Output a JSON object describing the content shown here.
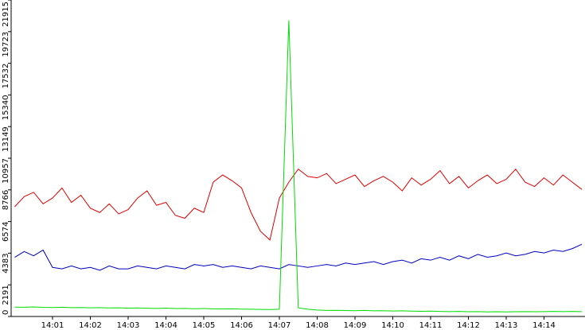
{
  "chart_data": {
    "type": "line",
    "categories": [
      null,
      null,
      null,
      null,
      "14:01",
      null,
      null,
      null,
      "14:02",
      null,
      null,
      null,
      "14:03",
      null,
      null,
      null,
      "14:04",
      null,
      null,
      null,
      "14:05",
      null,
      null,
      null,
      "14:06",
      null,
      null,
      null,
      "14:07",
      null,
      null,
      null,
      "14:08",
      null,
      null,
      null,
      "14:09",
      null,
      null,
      null,
      "14:10",
      null,
      null,
      null,
      "14:11",
      null,
      null,
      null,
      "14:12",
      null,
      null,
      null,
      "14:13",
      null,
      null,
      null,
      "14:14",
      null,
      null,
      null,
      null
    ],
    "series": [
      {
        "color": "#e00000",
        "values": [
          7600,
          8300,
          8600,
          7800,
          8200,
          8900,
          7900,
          8400,
          7500,
          7200,
          7800,
          7100,
          7400,
          8200,
          8700,
          7700,
          7900,
          7000,
          6800,
          7500,
          7200,
          9300,
          9800,
          9400,
          8900,
          7200,
          5900,
          5300,
          8200,
          9300,
          10200,
          9700,
          9600,
          9900,
          9200,
          9500,
          9800,
          9000,
          9400,
          9700,
          9300,
          8700,
          9600,
          9100,
          9500,
          10100,
          9200,
          9700,
          8900,
          9400,
          9800,
          9200,
          9500,
          10200,
          9300,
          9000,
          9600,
          9100,
          9800,
          9300,
          8800
        ]
      },
      {
        "color": "#0000c0",
        "values": [
          4100,
          4500,
          4200,
          4600,
          3400,
          3300,
          3500,
          3300,
          3400,
          3200,
          3500,
          3300,
          3300,
          3500,
          3400,
          3300,
          3500,
          3400,
          3300,
          3600,
          3500,
          3600,
          3400,
          3500,
          3400,
          3300,
          3500,
          3400,
          3300,
          3600,
          3500,
          3400,
          3500,
          3600,
          3500,
          3700,
          3600,
          3700,
          3800,
          3600,
          3800,
          3900,
          3700,
          4000,
          3900,
          4100,
          3900,
          4200,
          4000,
          4300,
          4100,
          4200,
          4400,
          4200,
          4300,
          4500,
          4400,
          4600,
          4500,
          4700,
          5000
        ]
      },
      {
        "color": "#00dd00",
        "values": [
          650,
          640,
          660,
          630,
          620,
          640,
          610,
          620,
          600,
          610,
          590,
          600,
          580,
          590,
          570,
          560,
          580,
          550,
          560,
          540,
          550,
          530,
          520,
          530,
          510,
          500,
          490,
          480,
          500,
          20500,
          600,
          500,
          450,
          420,
          430,
          410,
          400,
          420,
          390,
          400,
          380,
          390,
          370,
          360,
          370,
          350,
          340,
          350,
          330,
          340,
          320,
          330,
          320,
          330,
          340,
          330,
          340,
          350,
          340,
          350,
          340
        ]
      }
    ],
    "ylim": [
      0,
      21915
    ],
    "yticks": [
      0,
      2191,
      4383,
      6574,
      8766,
      10957,
      13149,
      15340,
      17532,
      19723,
      21915
    ]
  }
}
